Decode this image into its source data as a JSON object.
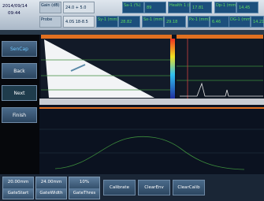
{
  "header": {
    "date": "2014/09/14",
    "time": "09:44",
    "params": [
      {
        "label": "Gain (dB)",
        "value": "24.0 + 5.0"
      },
      {
        "label": "Probe",
        "value": "4.0S 18-8.5"
      }
    ],
    "readings": [
      {
        "label": "Sa-1 (%)",
        "value": "89"
      },
      {
        "label": "Health 1 (mm)",
        "value": "17.81"
      },
      {
        "label": "Dp-1 (mm)",
        "value": "14.45"
      },
      {
        "label": "Sy-1 (mm)",
        "value": "28.82"
      },
      {
        "label": "Sx-1 (mm)",
        "value": "29.18"
      },
      {
        "label": "Px-1 (mm)",
        "value": "6.46"
      },
      {
        "label": "DG-1 (mm)",
        "value": "14.21"
      }
    ]
  },
  "sidebar": {
    "buttons": [
      "SenCap",
      "Back",
      "Next",
      "Finish"
    ]
  },
  "toolbar": {
    "settings": [
      {
        "value": "20.00mm",
        "label": "GateStart"
      },
      {
        "value": "24.00mm",
        "label": "GateWidth"
      },
      {
        "value": "10%",
        "label": "GateThres"
      }
    ],
    "actions": [
      "Calibrate",
      "ClearEnv",
      "ClearCalib"
    ]
  }
}
